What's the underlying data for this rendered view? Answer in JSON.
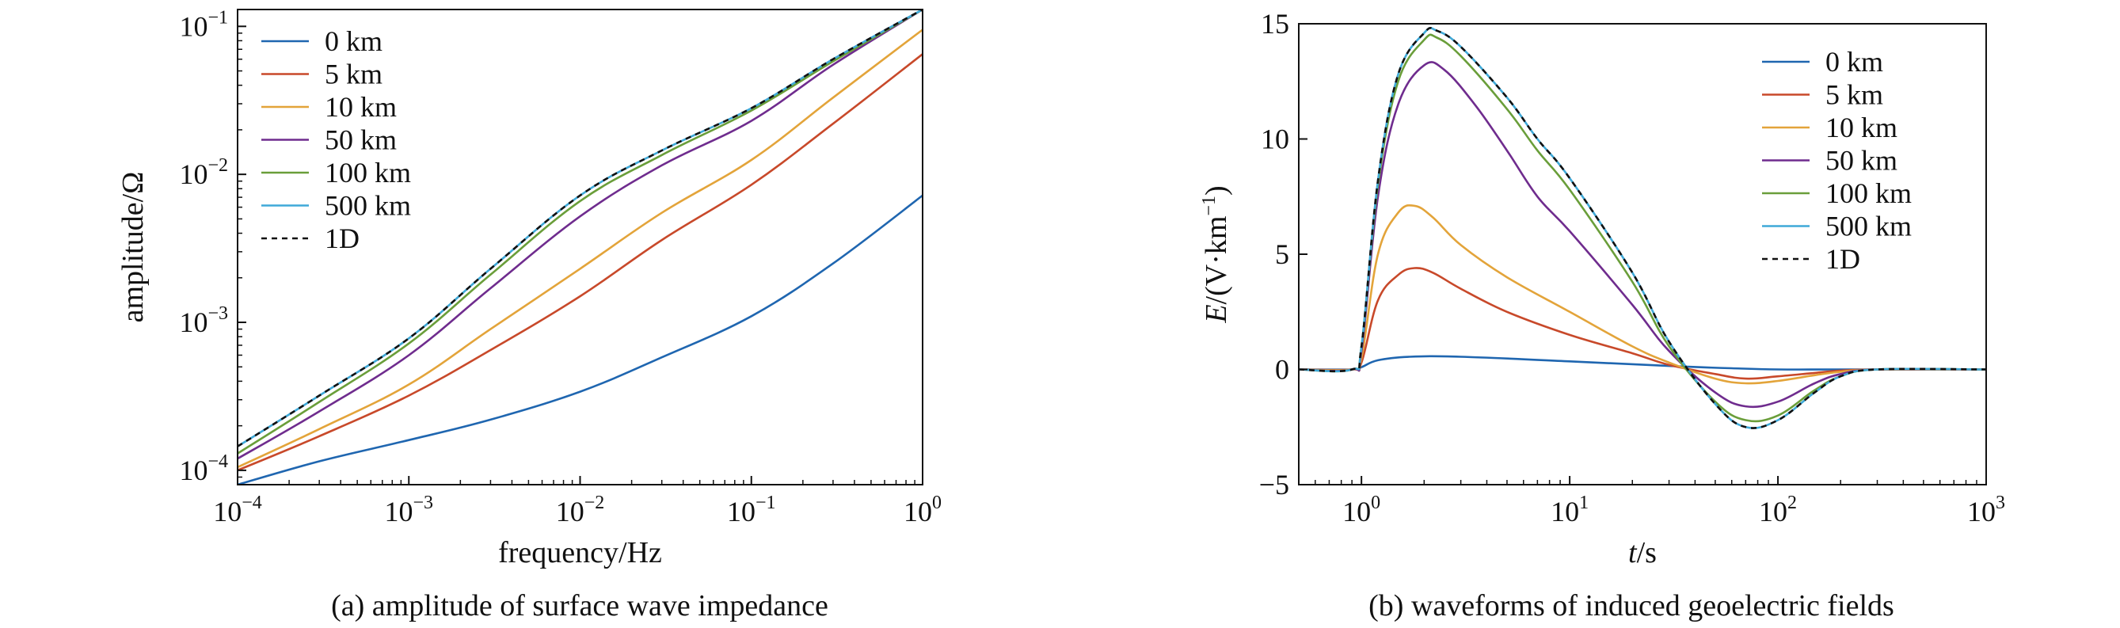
{
  "chart_data": [
    {
      "type": "line",
      "panel_caption": "(a) amplitude of surface wave impedance",
      "xlabel": "frequency/Hz",
      "ylabel": "amplitude/Ω",
      "xscale": "log",
      "yscale": "log",
      "xlim": [
        0.0001,
        1
      ],
      "ylim": [
        8e-05,
        0.13
      ],
      "xticks": [
        0.0001,
        0.001,
        0.01,
        0.1,
        1
      ],
      "xtick_labels": [
        [
          "10",
          "−4"
        ],
        [
          "10",
          "−3"
        ],
        [
          "10",
          "−2"
        ],
        [
          "10",
          "−1"
        ],
        [
          "10",
          "0"
        ]
      ],
      "yticks": [
        0.0001,
        0.001,
        0.01,
        0.1
      ],
      "ytick_labels": [
        [
          "10",
          "−4"
        ],
        [
          "10",
          "−3"
        ],
        [
          "10",
          "−2"
        ],
        [
          "10",
          "−1"
        ]
      ],
      "grid": false,
      "legend_position": "upper-left",
      "series": [
        {
          "name": "0 km",
          "color": "#1f66b0",
          "dash": "",
          "x": [
            0.0001,
            0.0003,
            0.001,
            0.003,
            0.01,
            0.03,
            0.1,
            0.3,
            1
          ],
          "y": [
            8e-05,
            0.000115,
            0.00016,
            0.00022,
            0.00034,
            0.00058,
            0.0011,
            0.0025,
            0.0072
          ]
        },
        {
          "name": "5 km",
          "color": "#c8492a",
          "dash": "",
          "x": [
            0.0001,
            0.0003,
            0.001,
            0.003,
            0.01,
            0.03,
            0.1,
            0.3,
            1
          ],
          "y": [
            0.0001,
            0.00017,
            0.00032,
            0.00065,
            0.0015,
            0.0036,
            0.0085,
            0.022,
            0.065
          ]
        },
        {
          "name": "10 km",
          "color": "#e3a43a",
          "dash": "",
          "x": [
            0.0001,
            0.0003,
            0.001,
            0.003,
            0.01,
            0.03,
            0.1,
            0.3,
            1
          ],
          "y": [
            0.000105,
            0.00019,
            0.00038,
            0.0009,
            0.0023,
            0.0055,
            0.0125,
            0.033,
            0.095
          ]
        },
        {
          "name": "50 km",
          "color": "#6f2c8e",
          "dash": "",
          "x": [
            0.0001,
            0.0003,
            0.001,
            0.003,
            0.01,
            0.03,
            0.1,
            0.3,
            1
          ],
          "y": [
            0.00012,
            0.00025,
            0.0006,
            0.0017,
            0.0052,
            0.0115,
            0.023,
            0.055,
            0.13
          ]
        },
        {
          "name": "100 km",
          "color": "#6a9e3a",
          "dash": "",
          "x": [
            0.0001,
            0.0003,
            0.001,
            0.003,
            0.01,
            0.03,
            0.1,
            0.3,
            1
          ],
          "y": [
            0.00013,
            0.00029,
            0.00072,
            0.0021,
            0.0066,
            0.0135,
            0.027,
            0.058,
            0.13
          ]
        },
        {
          "name": "500 km",
          "color": "#3fa9d8",
          "dash": "",
          "x": [
            0.0001,
            0.0003,
            0.001,
            0.003,
            0.01,
            0.03,
            0.1,
            0.3,
            1
          ],
          "y": [
            0.000145,
            0.00032,
            0.00078,
            0.0023,
            0.0072,
            0.0145,
            0.028,
            0.06,
            0.13
          ]
        },
        {
          "name": "1D",
          "color": "#111111",
          "dash": "7 6",
          "x": [
            0.0001,
            0.0003,
            0.001,
            0.003,
            0.01,
            0.03,
            0.1,
            0.3,
            1
          ],
          "y": [
            0.000145,
            0.00032,
            0.00078,
            0.0023,
            0.0072,
            0.0145,
            0.028,
            0.06,
            0.13
          ]
        }
      ]
    },
    {
      "type": "line",
      "panel_caption": "(b) waveforms of induced geoelectric fields",
      "xlabel_italic": "t",
      "xlabel_rest": "/s",
      "ylabel_italic": "E",
      "ylabel_rest": "/(V·km",
      "ylabel_sup": "−1",
      "ylabel_close": ")",
      "xscale": "log",
      "yscale": "linear",
      "xlim": [
        0.5,
        1000
      ],
      "ylim": [
        -5,
        15
      ],
      "xticks": [
        1,
        10,
        100,
        1000
      ],
      "xtick_labels": [
        [
          "10",
          "0"
        ],
        [
          "10",
          "1"
        ],
        [
          "10",
          "2"
        ],
        [
          "10",
          "3"
        ]
      ],
      "yticks": [
        -5,
        0,
        5,
        10,
        15
      ],
      "ytick_labels": [
        "−5",
        "0",
        "5",
        "10",
        "15"
      ],
      "grid": false,
      "legend_position": "upper-right",
      "series": [
        {
          "name": "0 km",
          "color": "#1f66b0",
          "dash": "",
          "x": [
            0.5,
            0.9,
            1.0,
            1.2,
            1.7,
            3,
            10,
            30,
            60,
            100,
            200,
            400,
            1000
          ],
          "y": [
            0,
            0,
            0.1,
            0.4,
            0.55,
            0.55,
            0.35,
            0.15,
            0.05,
            0,
            0,
            0,
            0
          ]
        },
        {
          "name": "5 km",
          "color": "#c8492a",
          "dash": "",
          "x": [
            0.5,
            0.9,
            1.0,
            1.2,
            1.5,
            1.8,
            2.2,
            3,
            5,
            10,
            20,
            30,
            50,
            70,
            100,
            150,
            200,
            300,
            1000
          ],
          "y": [
            0,
            0,
            0.3,
            3.0,
            4.1,
            4.4,
            4.2,
            3.5,
            2.5,
            1.5,
            0.7,
            0.2,
            -0.2,
            -0.4,
            -0.3,
            -0.15,
            -0.05,
            0,
            0
          ]
        },
        {
          "name": "10 km",
          "color": "#e3a43a",
          "dash": "",
          "x": [
            0.5,
            0.9,
            1.0,
            1.2,
            1.5,
            1.8,
            2.2,
            3,
            5,
            10,
            20,
            30,
            50,
            70,
            100,
            150,
            200,
            300,
            1000
          ],
          "y": [
            0,
            0,
            0.5,
            5.0,
            6.8,
            7.1,
            6.6,
            5.4,
            4.0,
            2.5,
            1.0,
            0.3,
            -0.4,
            -0.6,
            -0.5,
            -0.25,
            -0.1,
            0,
            0
          ]
        },
        {
          "name": "50 km",
          "color": "#6f2c8e",
          "dash": "",
          "x": [
            0.5,
            0.9,
            1.0,
            1.2,
            1.5,
            2.0,
            2.5,
            3.5,
            5,
            7,
            10,
            20,
            30,
            50,
            70,
            100,
            150,
            200,
            300,
            1000
          ],
          "y": [
            0,
            0,
            0.8,
            7.5,
            11.5,
            13.2,
            13.0,
            11.5,
            9.5,
            7.5,
            6.0,
            2.8,
            0.8,
            -1.0,
            -1.6,
            -1.4,
            -0.6,
            -0.2,
            0,
            0
          ]
        },
        {
          "name": "100 km",
          "color": "#6a9e3a",
          "dash": "",
          "x": [
            0.5,
            0.9,
            1.0,
            1.2,
            1.5,
            2.0,
            2.3,
            3,
            5,
            7,
            10,
            20,
            30,
            50,
            70,
            100,
            150,
            200,
            300,
            1000
          ],
          "y": [
            0,
            0,
            1.0,
            8.0,
            12.5,
            14.3,
            14.4,
            13.6,
            11.3,
            9.5,
            7.8,
            3.8,
            1.0,
            -1.4,
            -2.2,
            -2.0,
            -0.9,
            -0.3,
            0,
            0
          ]
        },
        {
          "name": "500 km",
          "color": "#3fa9d8",
          "dash": "",
          "x": [
            0.5,
            0.9,
            1.0,
            1.2,
            1.5,
            2.0,
            2.3,
            3,
            5,
            7,
            10,
            20,
            30,
            50,
            70,
            100,
            150,
            200,
            300,
            1000
          ],
          "y": [
            0,
            0,
            1.0,
            8.2,
            12.8,
            14.6,
            14.7,
            14.0,
            11.8,
            10.0,
            8.3,
            4.2,
            1.2,
            -1.5,
            -2.5,
            -2.2,
            -1.0,
            -0.3,
            0,
            0
          ]
        },
        {
          "name": "1D",
          "color": "#111111",
          "dash": "7 6",
          "x": [
            0.5,
            0.9,
            1.0,
            1.2,
            1.5,
            2.0,
            2.3,
            3,
            5,
            7,
            10,
            20,
            30,
            50,
            70,
            100,
            150,
            200,
            300,
            1000
          ],
          "y": [
            0,
            0,
            1.0,
            8.2,
            12.8,
            14.6,
            14.7,
            14.0,
            11.8,
            10.0,
            8.3,
            4.2,
            1.2,
            -1.5,
            -2.5,
            -2.2,
            -1.0,
            -0.3,
            0,
            0
          ]
        }
      ]
    }
  ]
}
